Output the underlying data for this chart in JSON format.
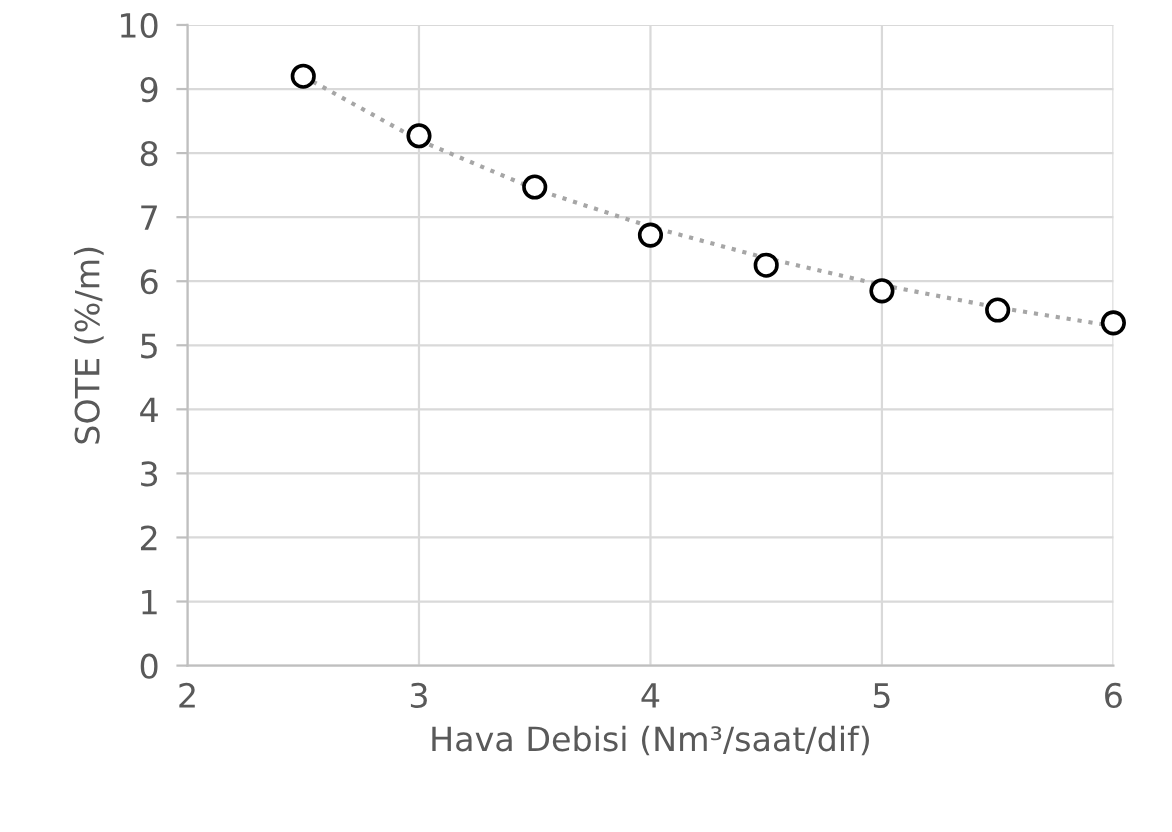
{
  "chart_data": {
    "type": "scatter",
    "xlabel": "Hava Debisi (Nm³/saat/dif)",
    "ylabel": "SOTE (%/m)",
    "series": [
      {
        "color": "#000000",
        "marker": "circle",
        "x": [
          2.5,
          3,
          3.5,
          4,
          4.5,
          5,
          5.5,
          6
        ],
        "values": [
          9.2,
          8.27,
          7.47,
          6.72,
          6.25,
          5.85,
          5.55,
          5.35
        ]
      },
      {
        "type": "line",
        "color": "#a6a6a6",
        "line_style": "dotted",
        "marker": "none",
        "x": [
          2.5,
          3,
          3.5,
          4,
          4.5,
          5,
          5.5,
          6
        ],
        "values": [
          9.2,
          8.2,
          7.44,
          6.85,
          6.36,
          5.94,
          5.59,
          5.3
        ]
      }
    ],
    "xlim": [
      2,
      6
    ],
    "xticks": [
      2,
      3,
      4,
      5,
      6
    ],
    "ylim": [
      0,
      10
    ],
    "yticks": [
      0,
      1,
      2,
      3,
      4,
      5,
      6,
      7,
      8,
      9,
      10
    ],
    "grid": true
  }
}
